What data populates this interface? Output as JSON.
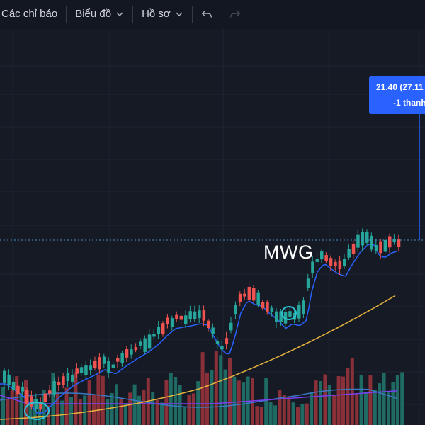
{
  "toolbar": {
    "indicators_label": "Các chỉ báo",
    "chart_label": "Biểu đồ",
    "profile_label": "Hồ sơ"
  },
  "price_badge": {
    "line1": "21.40 (27.11",
    "line2": "-1 thanh"
  },
  "symbol": "MWG",
  "colors": {
    "up": "#26a69a",
    "down": "#ef5350",
    "ma_fast": "#2962ff",
    "ma_slow": "#e6b43c",
    "vol_ma": "#7b3ff2",
    "grid": "#1f2433",
    "badge": "#2962ff",
    "highlight": "#2ec4d6"
  }
}
